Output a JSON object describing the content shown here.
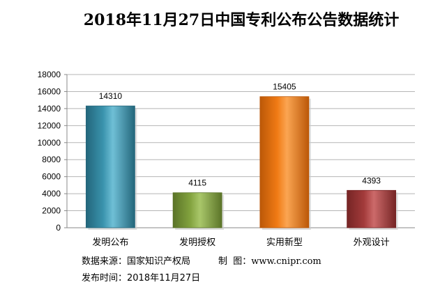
{
  "chart_data": {
    "type": "bar",
    "title": "2018年11月27日中国专利公布公告数据统计",
    "categories": [
      "发明公布",
      "发明授权",
      "实用新型",
      "外观设计"
    ],
    "values": [
      14310,
      4115,
      15405,
      4393
    ],
    "value_labels": [
      "14310",
      "4115",
      "15405",
      "4393"
    ],
    "ylim": [
      0,
      18000
    ],
    "yticks": [
      0,
      2000,
      4000,
      6000,
      8000,
      10000,
      12000,
      14000,
      16000,
      18000
    ],
    "ytick_labels": [
      "0",
      "2000",
      "4000",
      "6000",
      "8000",
      "10000",
      "12000",
      "14000",
      "16000",
      "18000"
    ],
    "grid": true,
    "colors": [
      "#3a93ad",
      "#82a23e",
      "#f07a14",
      "#a33b3b"
    ],
    "colors_dark": [
      "#23667b",
      "#5b7428",
      "#bb5808",
      "#762525"
    ],
    "colors_light": [
      "#6fbfd6",
      "#a9c76a",
      "#fba552",
      "#cc6a6a"
    ],
    "xlabel": "",
    "ylabel": ""
  },
  "footer": {
    "source_label": "数据来源：",
    "source_value": "国家知识产权局",
    "maker_label": "制  图：",
    "maker_value": "www.cnipr.com",
    "date_label": "发布时间：",
    "date_value": "2018年11月27日"
  }
}
